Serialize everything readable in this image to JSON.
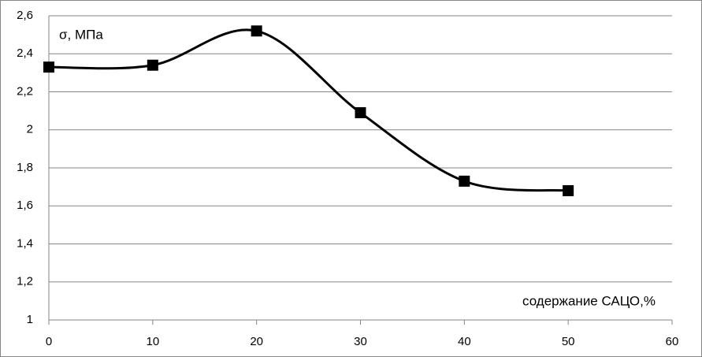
{
  "chart_data": {
    "type": "line",
    "ylabel": "σ, МПа",
    "xlabel": "содержание САЦО,%",
    "x": [
      0,
      10,
      20,
      30,
      40,
      50
    ],
    "values": [
      2.33,
      2.34,
      2.52,
      2.09,
      1.73,
      1.68
    ],
    "color": "#000000",
    "smooth": true,
    "marker": "square",
    "xlim": [
      0,
      60
    ],
    "xticks": [
      0,
      10,
      20,
      30,
      40,
      50,
      60
    ],
    "ylim": [
      1,
      2.6
    ],
    "yticks": [
      1,
      {
        "value": 1.2,
        "label": "1,2"
      },
      {
        "value": 1.4,
        "label": "1,4"
      },
      {
        "value": 1.6,
        "label": "1,6"
      },
      {
        "value": 1.8,
        "label": "1,8"
      },
      2,
      {
        "value": 2.2,
        "label": "2,2"
      },
      {
        "value": 2.4,
        "label": "2,4"
      },
      {
        "value": 2.6,
        "label": "2,6"
      }
    ],
    "grid": true
  }
}
